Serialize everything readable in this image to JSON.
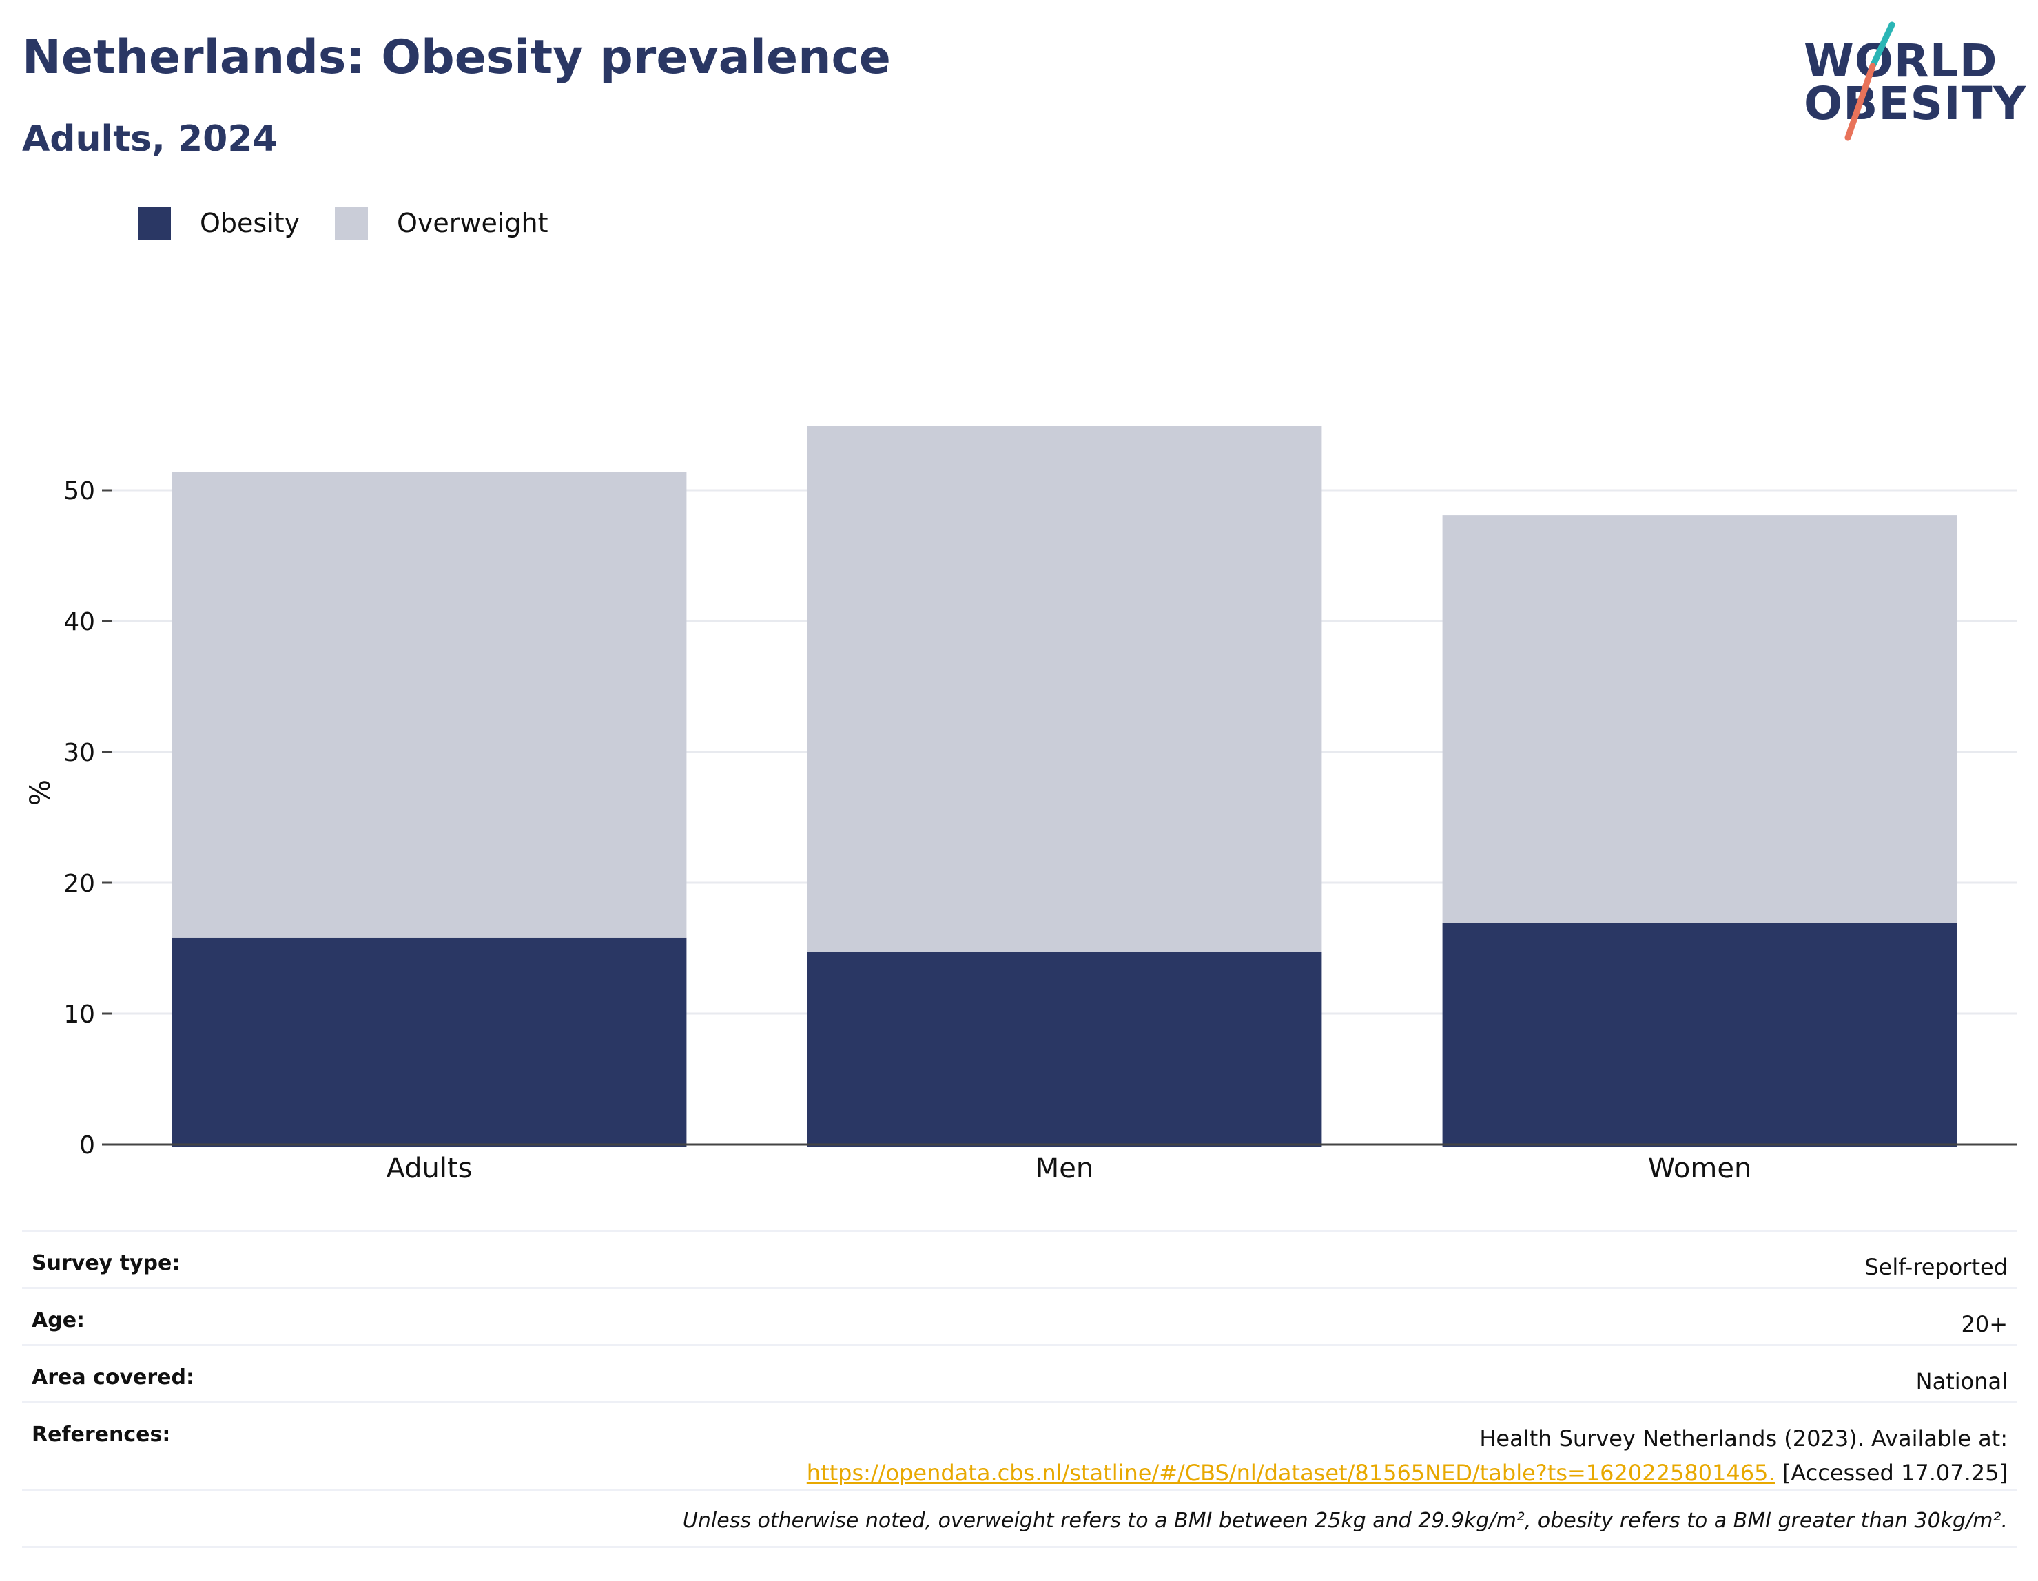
{
  "header": {
    "title": "Netherlands: Obesity prevalence",
    "subtitle": "Adults, 2024"
  },
  "logo": {
    "line1": "WORLD",
    "line2": "OBESITY",
    "colors": {
      "text": "#2a3764",
      "slash_top": "#2ab5b5",
      "slash_bottom": "#e8735a"
    }
  },
  "chart_data": {
    "type": "bar",
    "stacked": true,
    "categories": [
      "Adults",
      "Men",
      "Women"
    ],
    "series": [
      {
        "name": "Obesity",
        "color": "#2a3764",
        "values": [
          15.8,
          14.7,
          16.9
        ]
      },
      {
        "name": "Overweight",
        "color": "#cacdd8",
        "values": [
          35.6,
          40.2,
          31.2
        ]
      }
    ],
    "ylabel": "%",
    "ylim": [
      0,
      58
    ],
    "yticks": [
      0,
      10,
      20,
      30,
      40,
      50
    ],
    "grid": true,
    "legend": "top-left"
  },
  "info": {
    "survey_type": {
      "label": "Survey type:",
      "value": "Self-reported"
    },
    "age": {
      "label": "Age:",
      "value": "20+"
    },
    "area": {
      "label": "Area covered:",
      "value": "National"
    },
    "references": {
      "label": "References:",
      "text": "Health Survey Netherlands (2023). Available at:",
      "link": "https://opendata.cbs.nl/statline/#/CBS/nl/dataset/81565NED/table?ts=1620225801465.",
      "accessed": "[Accessed 17.07.25]"
    },
    "note": "Unless otherwise noted, overweight refers to a BMI between 25kg and 29.9kg/m², obesity refers to a BMI greater than 30kg/m²."
  }
}
